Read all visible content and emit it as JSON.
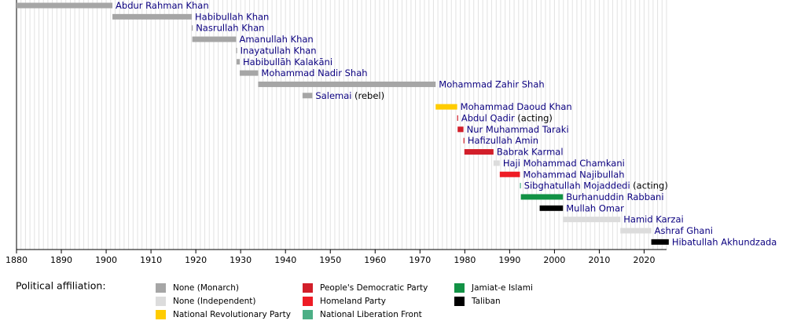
{
  "chart_data": {
    "type": "timeline",
    "rows": [
      {
        "name": "Abdur Rahman Khan",
        "start": 1880,
        "end": 1901.4,
        "color": "#a6a6a6"
      },
      {
        "name": "Habibullah Khan",
        "start": 1901.4,
        "end": 1919.1,
        "color": "#a6a6a6"
      },
      {
        "name": "Nasrullah Khan",
        "start": 1919.1,
        "end": 1919.3,
        "color": "#a6a6a6"
      },
      {
        "name": "Amanullah Khan",
        "start": 1919.2,
        "end": 1929,
        "color": "#a6a6a6"
      },
      {
        "name": "Inayatullah Khan",
        "start": 1929,
        "end": 1929.1,
        "color": "#a6a6a6"
      },
      {
        "name": "Habibullāh Kalakāni",
        "start": 1929.1,
        "end": 1929.8,
        "color": "#a6a6a6"
      },
      {
        "name": "Mohammad Nadir Shah",
        "start": 1929.8,
        "end": 1933.9,
        "color": "#a6a6a6"
      },
      {
        "name": "Mohammad Zahir Shah",
        "start": 1933.9,
        "end": 1973.5,
        "color": "#a6a6a6"
      },
      {
        "name": "Salemai",
        "note": "(rebel)",
        "start": 1943.8,
        "end": 1946,
        "color": "#a6a6a6"
      },
      {
        "name": "Mohammad Daoud Khan",
        "start": 1973.5,
        "end": 1978.3,
        "color": "#ffcc00"
      },
      {
        "name": "Abdul Qadir",
        "note": "(acting)",
        "start": 1978.3,
        "end": 1978.4,
        "color": "#d21f2a"
      },
      {
        "name": "Nur Muhammad Taraki",
        "start": 1978.4,
        "end": 1979.7,
        "color": "#d21f2a"
      },
      {
        "name": "Hafizullah Amin",
        "start": 1979.7,
        "end": 1979.9,
        "color": "#d21f2a"
      },
      {
        "name": "Babrak Karmal",
        "start": 1979.9,
        "end": 1986.4,
        "color": "#d21f2a"
      },
      {
        "name": "Haji Mohammad Chamkani",
        "start": 1986.4,
        "end": 1987.8,
        "color": "#dcdcdc"
      },
      {
        "name": "Mohammad Najibullah",
        "start": 1987.8,
        "end": 1992.3,
        "color": "#ee1c25"
      },
      {
        "name": "Sibghatullah Mojaddedi",
        "note": "(acting)",
        "start": 1992.3,
        "end": 1992.5,
        "color": "#4caf86"
      },
      {
        "name": "Burhanuddin Rabbani",
        "start": 1992.5,
        "end": 2001.9,
        "color": "#129245"
      },
      {
        "name": "Mullah Omar",
        "start": 1996.7,
        "end": 2001.9,
        "color": "#000000"
      },
      {
        "name": "Hamid Karzai",
        "start": 2001.9,
        "end": 2014.7,
        "color": "#dcdcdc"
      },
      {
        "name": "Ashraf Ghani",
        "start": 2014.7,
        "end": 2021.6,
        "color": "#dcdcdc"
      },
      {
        "name": "Hibatullah Akhundzada",
        "start": 2021.6,
        "end": 2025.5,
        "color": "#000000"
      }
    ],
    "xlim": [
      1880,
      2025
    ],
    "xticks": [
      1880,
      1890,
      1900,
      1910,
      1920,
      1930,
      1940,
      1950,
      1960,
      1970,
      1980,
      1990,
      2000,
      2010,
      2020
    ],
    "minor_grid": 1,
    "legend_title": "Political affiliation:",
    "legend": [
      {
        "name": "None (Monarch)",
        "color": "#a6a6a6"
      },
      {
        "name": "None (Independent)",
        "color": "#dcdcdc"
      },
      {
        "name": "National Revolutionary Party",
        "color": "#ffcc00"
      },
      {
        "name": "People's Democratic Party",
        "color": "#d21f2a"
      },
      {
        "name": "Homeland Party",
        "color": "#ee1c25"
      },
      {
        "name": "National Liberation Front",
        "color": "#4caf86"
      },
      {
        "name": "Jamiat-e Islami",
        "color": "#129245"
      },
      {
        "name": "Taliban",
        "color": "#000000"
      }
    ]
  }
}
